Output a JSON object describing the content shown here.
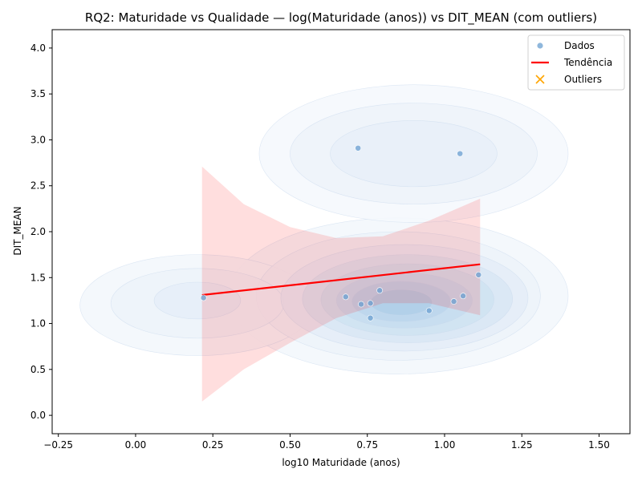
{
  "chart_data": {
    "type": "scatter",
    "title": "RQ2: Maturidade vs Qualidade — log(Maturidade (anos)) vs DIT_MEAN (com outliers)",
    "xlabel": "log10 Maturidade (anos)",
    "ylabel": "DIT_MEAN",
    "xlim": [
      -0.27,
      1.6
    ],
    "ylim": [
      -0.2,
      4.2
    ],
    "x_ticks": [
      -0.25,
      0.0,
      0.25,
      0.5,
      0.75,
      1.0,
      1.25,
      1.5
    ],
    "x_tick_labels": [
      "−0.25",
      "0.00",
      "0.25",
      "0.50",
      "0.75",
      "1.00",
      "1.25",
      "1.50"
    ],
    "y_ticks": [
      0.0,
      0.5,
      1.0,
      1.5,
      2.0,
      2.5,
      3.0,
      3.5,
      4.0
    ],
    "y_tick_labels": [
      "0.0",
      "0.5",
      "1.0",
      "1.5",
      "2.0",
      "2.5",
      "3.0",
      "3.5",
      "4.0"
    ],
    "grid": false,
    "legend": {
      "position": "top-right",
      "entries": [
        {
          "label": "Dados",
          "kind": "point",
          "color": "#6a9fd0"
        },
        {
          "label": "Tendência",
          "kind": "line",
          "color": "#ff0000"
        },
        {
          "label": "Outliers",
          "kind": "x",
          "color": "#ffa500"
        }
      ]
    },
    "series": [
      {
        "name": "Dados",
        "kind": "scatter",
        "color": "#6a9fd0",
        "points": [
          {
            "x": 0.22,
            "y": 1.28
          },
          {
            "x": 0.68,
            "y": 1.29
          },
          {
            "x": 0.72,
            "y": 2.91
          },
          {
            "x": 0.73,
            "y": 1.21
          },
          {
            "x": 0.76,
            "y": 1.22
          },
          {
            "x": 0.76,
            "y": 1.06
          },
          {
            "x": 0.79,
            "y": 1.36
          },
          {
            "x": 0.95,
            "y": 1.14
          },
          {
            "x": 1.03,
            "y": 1.24
          },
          {
            "x": 1.05,
            "y": 2.85
          },
          {
            "x": 1.06,
            "y": 1.3
          },
          {
            "x": 1.11,
            "y": 1.53
          }
        ]
      },
      {
        "name": "Tendência",
        "kind": "line",
        "color": "#ff0000",
        "x": [
          0.215,
          1.115
        ],
        "y": [
          1.31,
          1.645
        ],
        "band": {
          "x": [
            0.215,
            0.35,
            0.5,
            0.65,
            0.8,
            0.95,
            1.115
          ],
          "upper": [
            2.71,
            2.3,
            2.05,
            1.93,
            1.95,
            2.12,
            2.36
          ],
          "lower": [
            0.15,
            0.5,
            0.79,
            1.06,
            1.22,
            1.22,
            1.09
          ]
        }
      },
      {
        "name": "Outliers",
        "kind": "x",
        "color": "#ffa500",
        "points": []
      }
    ],
    "density_contours": [
      {
        "cx": 0.85,
        "cy": 1.3,
        "rx": 0.55,
        "ry": 0.85,
        "rot": 0,
        "color": "#f3f7fc"
      },
      {
        "cx": 0.9,
        "cy": 2.85,
        "rx": 0.5,
        "ry": 0.75,
        "rot": 0,
        "color": "#f5f8fd"
      },
      {
        "cx": 0.2,
        "cy": 1.2,
        "rx": 0.38,
        "ry": 0.55,
        "rot": 0,
        "color": "#f3f7fc"
      },
      {
        "cx": 0.85,
        "cy": 1.3,
        "rx": 0.46,
        "ry": 0.7,
        "rot": 0,
        "color": "#edf3fa"
      },
      {
        "cx": 0.9,
        "cy": 2.85,
        "rx": 0.4,
        "ry": 0.55,
        "rot": 0,
        "color": "#eef3fa"
      },
      {
        "cx": 0.2,
        "cy": 1.22,
        "rx": 0.28,
        "ry": 0.38,
        "rot": 0,
        "color": "#edf3fa"
      },
      {
        "cx": 0.87,
        "cy": 1.28,
        "rx": 0.4,
        "ry": 0.58,
        "rot": 0,
        "color": "#e4edf7"
      },
      {
        "cx": 0.9,
        "cy": 2.85,
        "rx": 0.27,
        "ry": 0.36,
        "rot": 0,
        "color": "#e8eff8"
      },
      {
        "cx": 0.2,
        "cy": 1.25,
        "rx": 0.14,
        "ry": 0.2,
        "rot": 0,
        "color": "#e6eef8"
      },
      {
        "cx": 0.88,
        "cy": 1.27,
        "rx": 0.34,
        "ry": 0.48,
        "rot": 0,
        "color": "#d9e7f4"
      },
      {
        "cx": 0.88,
        "cy": 1.26,
        "rx": 0.28,
        "ry": 0.39,
        "rot": 0,
        "color": "#cfe3f2"
      },
      {
        "cx": 0.87,
        "cy": 1.25,
        "rx": 0.22,
        "ry": 0.3,
        "rot": 0,
        "color": "#c6ddef"
      },
      {
        "cx": 0.86,
        "cy": 1.24,
        "rx": 0.16,
        "ry": 0.22,
        "rot": 0,
        "color": "#bcd6ec"
      },
      {
        "cx": 0.86,
        "cy": 1.23,
        "rx": 0.1,
        "ry": 0.14,
        "rot": 0,
        "color": "#b0cfe8"
      }
    ]
  }
}
